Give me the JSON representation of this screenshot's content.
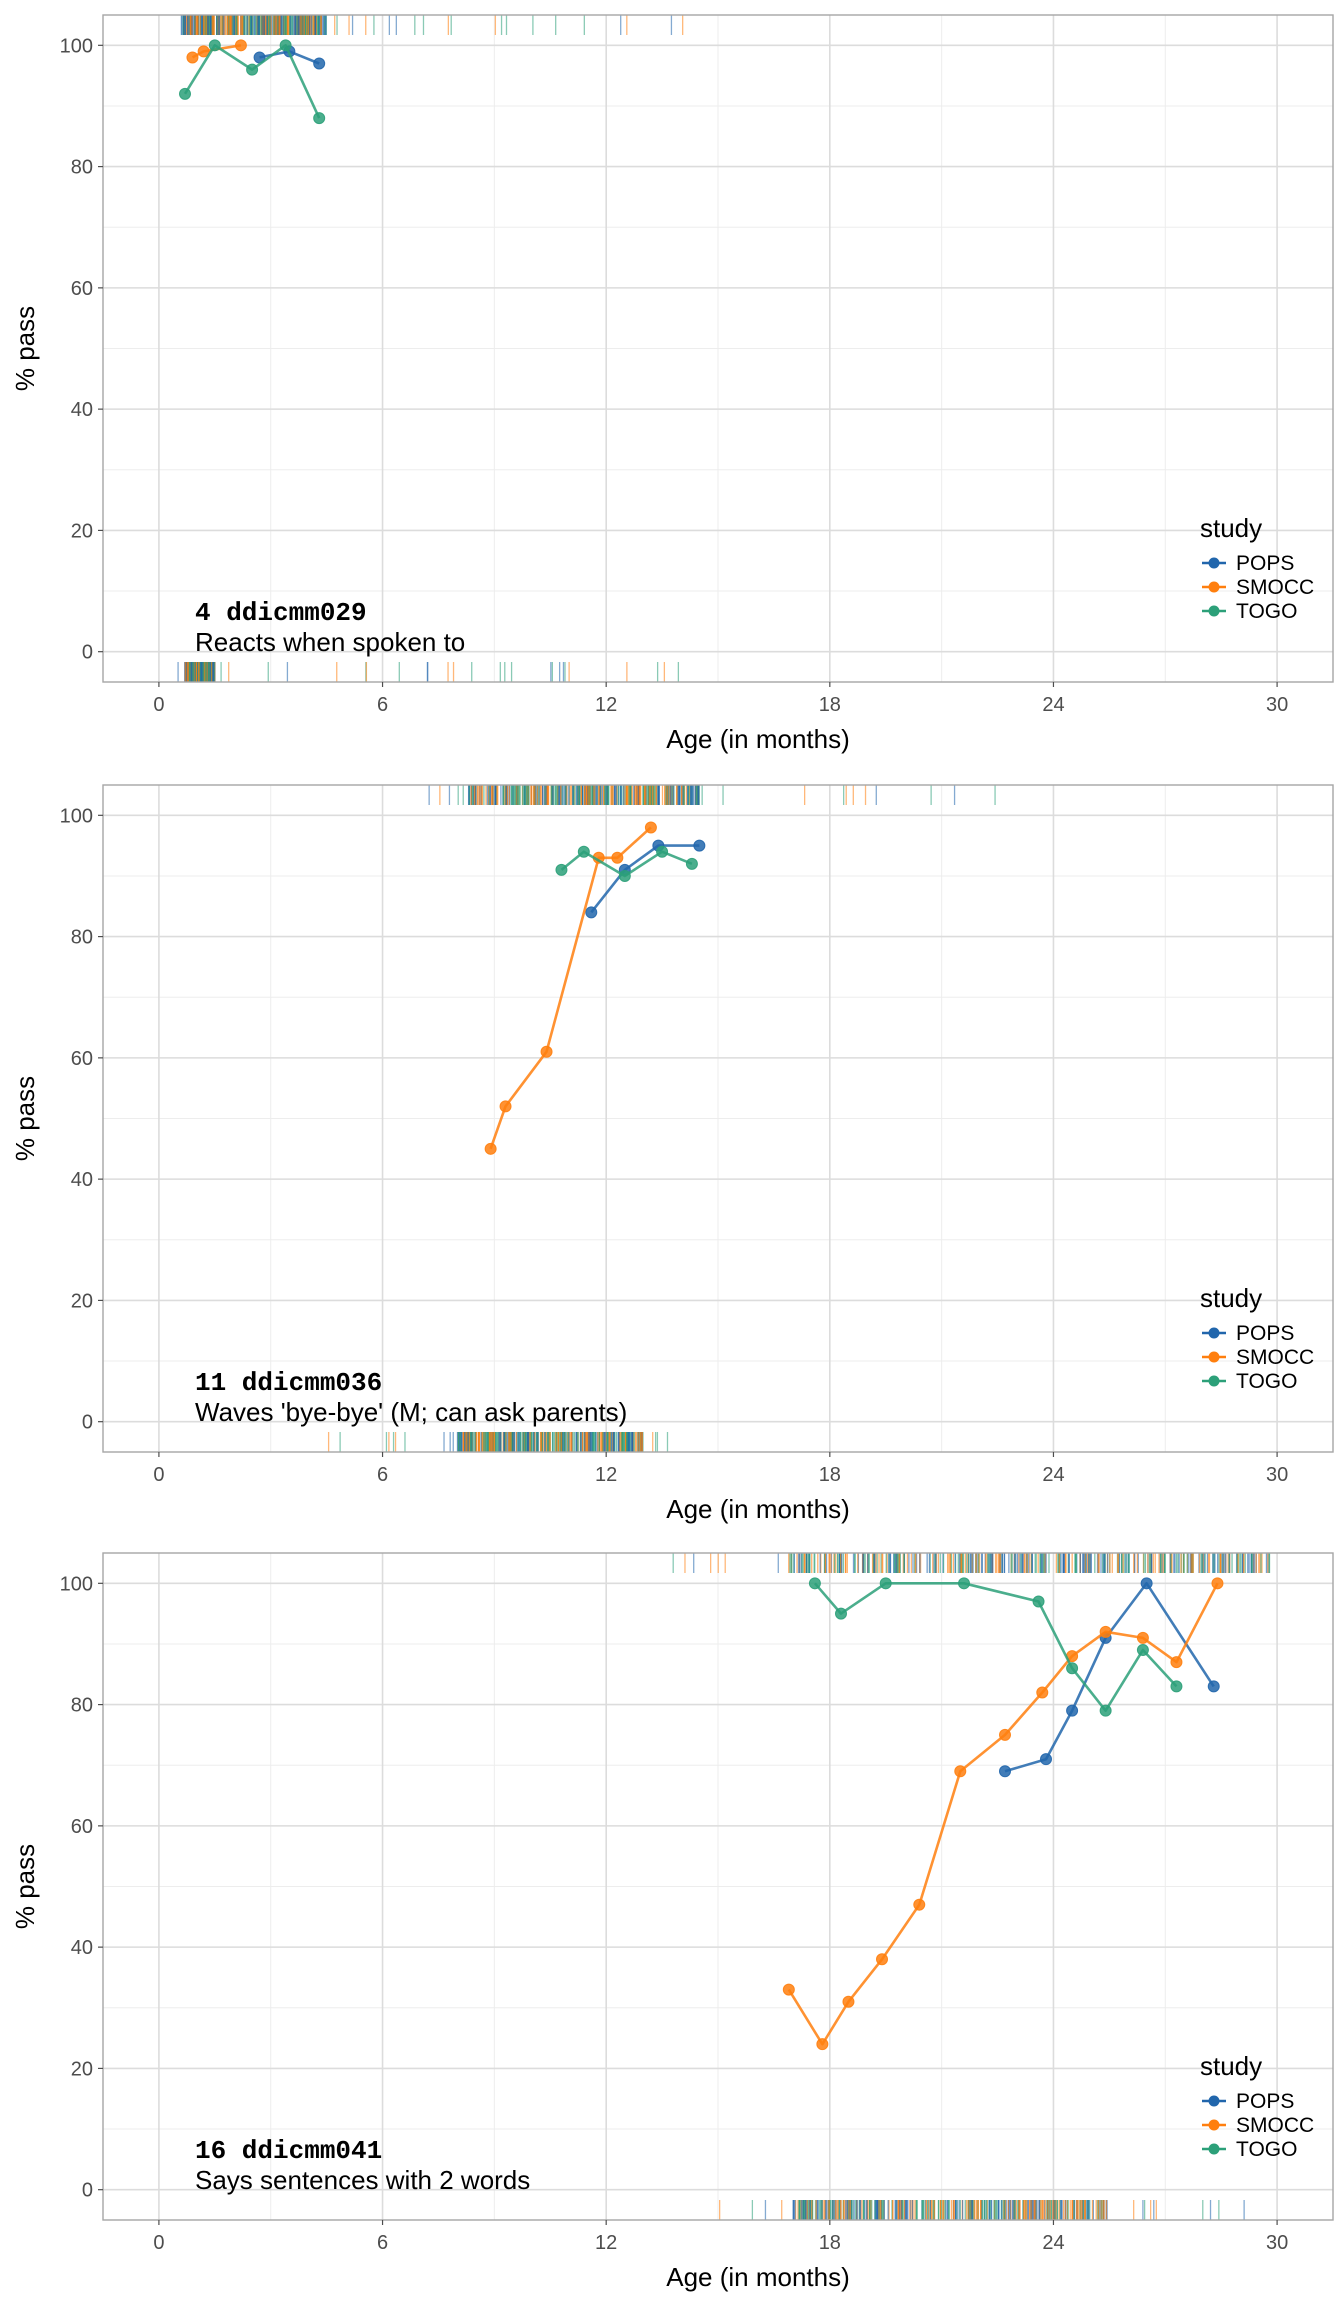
{
  "colors": {
    "POPS": "#2166AC",
    "SMOCC": "#FF7F0E",
    "TOGO": "#2CA079"
  },
  "chart_data": [
    {
      "type": "line",
      "annotation": {
        "code": "4  ddicmm029",
        "label": "Reacts when spoken to"
      },
      "xlabel": "Age (in months)",
      "ylabel": "% pass",
      "xlim": [
        -1.5,
        31.5
      ],
      "ylim": [
        -5,
        105
      ],
      "x_ticks": [
        0,
        6,
        12,
        18,
        24,
        30
      ],
      "y_ticks": [
        0,
        20,
        40,
        60,
        80,
        100
      ],
      "grid": true,
      "legend": {
        "title": "study",
        "placement": "bottom-right",
        "entries": [
          "POPS",
          "SMOCC",
          "TOGO"
        ]
      },
      "series": [
        {
          "name": "POPS",
          "x": [
            2.7,
            3.5,
            4.3
          ],
          "y": [
            98,
            99,
            97
          ]
        },
        {
          "name": "SMOCC",
          "x": [
            0.9,
            1.2,
            2.2
          ],
          "y": [
            98,
            99,
            100
          ]
        },
        {
          "name": "TOGO",
          "x": [
            0.7,
            1.5,
            2.5,
            3.4,
            4.3
          ],
          "y": [
            92,
            100,
            96,
            100,
            88
          ]
        }
      ],
      "rug": {
        "top": {
          "from": 0.4,
          "to": 14.5,
          "dense": [
            0.6,
            4.5
          ]
        },
        "bottom": {
          "from": 0.5,
          "to": 14.5,
          "dense": [
            0.7,
            1.5
          ]
        }
      }
    },
    {
      "type": "line",
      "annotation": {
        "code": "11  ddicmm036",
        "label": "Waves 'bye-bye' (M; can ask parents)"
      },
      "xlabel": "Age (in months)",
      "ylabel": "% pass",
      "xlim": [
        -1.5,
        31.5
      ],
      "ylim": [
        -5,
        105
      ],
      "x_ticks": [
        0,
        6,
        12,
        18,
        24,
        30
      ],
      "y_ticks": [
        0,
        20,
        40,
        60,
        80,
        100
      ],
      "grid": true,
      "legend": {
        "title": "study",
        "placement": "bottom-right",
        "entries": [
          "POPS",
          "SMOCC",
          "TOGO"
        ]
      },
      "series": [
        {
          "name": "POPS",
          "x": [
            11.6,
            12.5,
            13.4,
            14.5
          ],
          "y": [
            84,
            91,
            95,
            95
          ]
        },
        {
          "name": "SMOCC",
          "x": [
            8.9,
            9.3,
            10.4,
            11.8,
            12.3,
            13.2
          ],
          "y": [
            45,
            52,
            61,
            93,
            93,
            98
          ]
        },
        {
          "name": "TOGO",
          "x": [
            10.8,
            11.4,
            12.5,
            13.5,
            14.3
          ],
          "y": [
            91,
            94,
            90,
            94,
            92
          ]
        }
      ],
      "rug": {
        "top": {
          "from": 6.8,
          "to": 23.5,
          "dense": [
            8.3,
            14.5
          ]
        },
        "bottom": {
          "from": 4.2,
          "to": 14.8,
          "dense": [
            8.0,
            13.0
          ]
        }
      }
    },
    {
      "type": "line",
      "annotation": {
        "code": "16  ddicmm041",
        "label": "Says sentences with 2 words"
      },
      "xlabel": "Age (in months)",
      "ylabel": "% pass",
      "xlim": [
        -1.5,
        31.5
      ],
      "ylim": [
        -5,
        105
      ],
      "x_ticks": [
        0,
        6,
        12,
        18,
        24,
        30
      ],
      "y_ticks": [
        0,
        20,
        40,
        60,
        80,
        100
      ],
      "grid": true,
      "legend": {
        "title": "study",
        "placement": "bottom-right",
        "entries": [
          "POPS",
          "SMOCC",
          "TOGO"
        ]
      },
      "series": [
        {
          "name": "POPS",
          "x": [
            22.7,
            23.8,
            24.5,
            25.4,
            26.5,
            28.3
          ],
          "y": [
            69,
            71,
            79,
            91,
            100,
            83
          ]
        },
        {
          "name": "SMOCC",
          "x": [
            16.9,
            17.8,
            18.5,
            19.4,
            20.4,
            21.5,
            22.7,
            23.7,
            24.5,
            25.4,
            26.4,
            27.3,
            28.4
          ],
          "y": [
            33,
            24,
            31,
            38,
            47,
            69,
            75,
            82,
            88,
            92,
            91,
            87,
            100
          ]
        },
        {
          "name": "TOGO",
          "x": [
            17.6,
            18.3,
            19.5,
            21.6,
            23.6,
            24.5,
            25.4,
            26.4,
            27.3
          ],
          "y": [
            100,
            95,
            100,
            100,
            97,
            86,
            79,
            89,
            83
          ]
        }
      ],
      "rug": {
        "top": {
          "from": 13.2,
          "to": 29.8,
          "dense": [
            16.8,
            29.8
          ]
        },
        "bottom": {
          "from": 14.5,
          "to": 29.5,
          "dense": [
            17.0,
            25.5
          ]
        }
      }
    }
  ]
}
